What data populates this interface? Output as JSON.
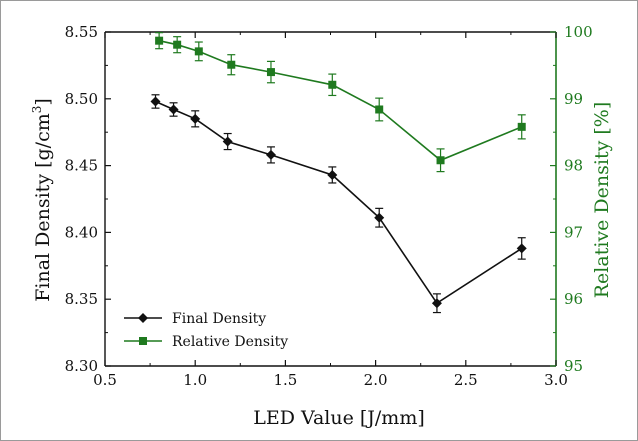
{
  "chart_data": {
    "type": "line",
    "xlabel": "LED Value [J/mm]",
    "ylabel_left_main": "Final Density [g/cm",
    "ylabel_left_sup": "3",
    "ylabel_left_end": "]",
    "ylabel_right": "Relative Density [%]",
    "xlim": [
      0.5,
      3.0
    ],
    "ylim_left": [
      8.3,
      8.55
    ],
    "ylim_right": [
      95,
      100
    ],
    "x_ticks": [
      "0.5",
      "1.0",
      "1.5",
      "2.0",
      "2.5",
      "3.0"
    ],
    "y_left_ticks": [
      "8.30",
      "8.35",
      "8.40",
      "8.45",
      "8.50",
      "8.55"
    ],
    "y_right_ticks": [
      "95",
      "96",
      "97",
      "98",
      "99",
      "100"
    ],
    "grid": false,
    "legend_position": "bottom-left",
    "series": [
      {
        "name": "Final Density",
        "axis": "left",
        "color": "#111111",
        "marker": "diamond",
        "x": [
          0.78,
          0.88,
          1.0,
          1.18,
          1.42,
          1.76,
          2.02,
          2.34,
          2.81
        ],
        "y": [
          8.498,
          8.492,
          8.485,
          8.468,
          8.458,
          8.443,
          8.411,
          8.347,
          8.388
        ],
        "err": [
          0.005,
          0.005,
          0.006,
          0.006,
          0.006,
          0.006,
          0.007,
          0.007,
          0.008
        ]
      },
      {
        "name": "Relative Density",
        "axis": "right",
        "color": "#1f7a1f",
        "marker": "square",
        "x": [
          0.8,
          0.9,
          1.02,
          1.2,
          1.42,
          1.76,
          2.02,
          2.36,
          2.81
        ],
        "y": [
          99.87,
          99.81,
          99.71,
          99.51,
          99.4,
          99.21,
          98.84,
          98.08,
          98.58
        ],
        "err": [
          0.12,
          0.12,
          0.14,
          0.15,
          0.16,
          0.16,
          0.17,
          0.17,
          0.18
        ]
      }
    ]
  }
}
